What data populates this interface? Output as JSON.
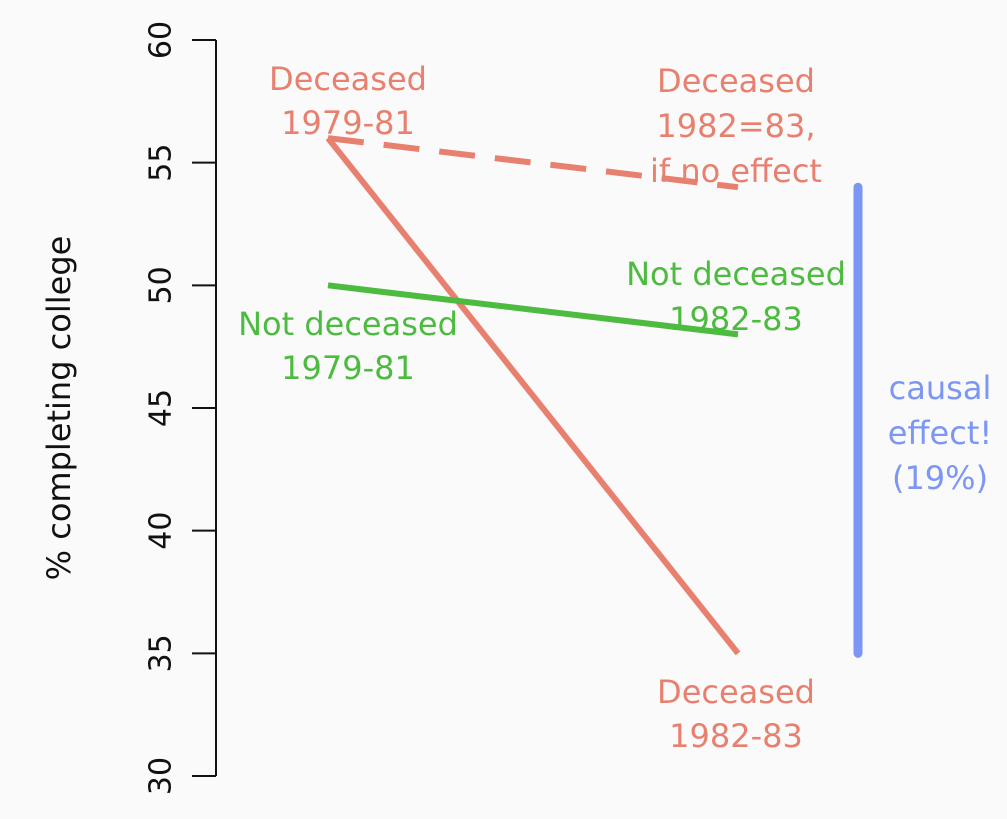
{
  "chart_data": {
    "type": "line",
    "ylabel": "% completing college",
    "xlabel": "",
    "ylim": [
      30,
      60
    ],
    "yticks": [
      "30",
      "35",
      "40",
      "45",
      "50",
      "55",
      "60"
    ],
    "x": [
      "1979-81",
      "1982-83"
    ],
    "series": [
      {
        "name": "Deceased",
        "values": [
          56,
          35
        ],
        "color": "#e8806f",
        "dash": false
      },
      {
        "name": "Deceased, if no effect",
        "values": [
          56,
          54
        ],
        "color": "#e8806f",
        "dash": true
      },
      {
        "name": "Not deceased",
        "values": [
          50,
          48
        ],
        "color": "#4cbb3f",
        "dash": false
      }
    ],
    "effect_bar": {
      "from": 54,
      "to": 35,
      "color": "#7b96f5"
    },
    "annotations": [
      {
        "id": "deceased-1979",
        "color": "#e8806f",
        "lines": [
          "Deceased",
          "1979-81"
        ]
      },
      {
        "id": "deceased-no-effect",
        "color": "#e8806f",
        "lines": [
          "Deceased",
          "1982=83,",
          "if no effect"
        ]
      },
      {
        "id": "not-deceased-1982",
        "color": "#4cbb3f",
        "lines": [
          "Not deceased",
          "1982-83"
        ]
      },
      {
        "id": "not-deceased-1979",
        "color": "#4cbb3f",
        "lines": [
          "Not deceased",
          "1979-81"
        ]
      },
      {
        "id": "deceased-1982",
        "color": "#e8806f",
        "lines": [
          "Deceased",
          "1982-83"
        ]
      },
      {
        "id": "causal-effect",
        "color": "#7b96f5",
        "lines": [
          "causal",
          "effect!",
          "(19%)"
        ]
      }
    ]
  }
}
